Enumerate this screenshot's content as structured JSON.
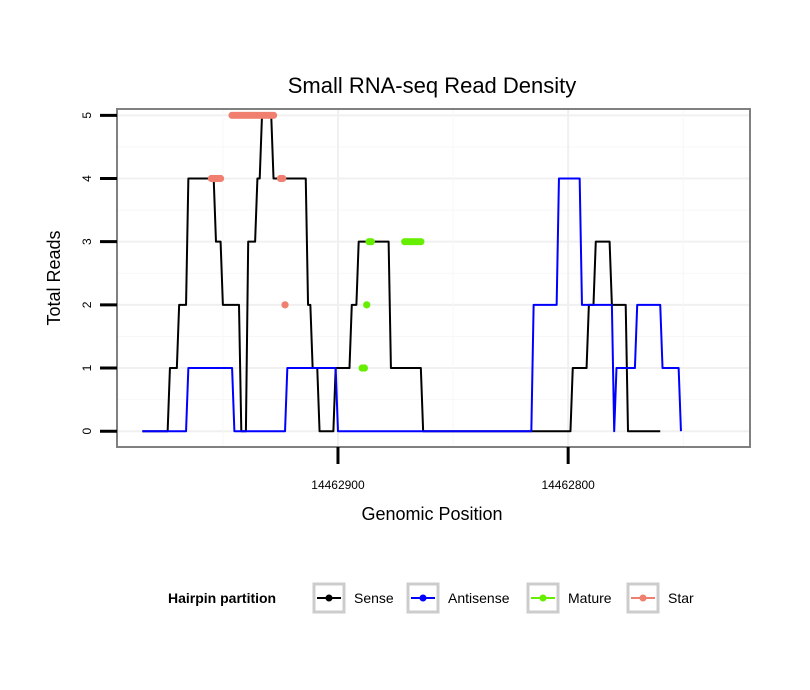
{
  "chart_data": {
    "type": "line",
    "title": "Small RNA-seq Read Density",
    "xlabel": "Genomic Position",
    "ylabel": "Total Reads",
    "xlim": [
      14462996,
      14462721
    ],
    "ylim": [
      -0.25,
      5.1
    ],
    "x_reversed": true,
    "x_ticks": [
      14462900,
      14462800
    ],
    "x_tick_labels": [
      "14462900",
      "14462800"
    ],
    "y_ticks": [
      0,
      1,
      2,
      3,
      4,
      5
    ],
    "y_tick_labels": [
      "0",
      "1",
      "2",
      "3",
      "4",
      "5"
    ],
    "grid": true,
    "legend": {
      "title": "Hairpin partition",
      "placement": "bottom",
      "entries": [
        {
          "name": "Sense",
          "color": "#000000"
        },
        {
          "name": "Antisense",
          "color": "#0000ff"
        },
        {
          "name": "Mature",
          "color": "#66ee00"
        },
        {
          "name": "Star",
          "color": "#f07f70"
        }
      ]
    },
    "series": [
      {
        "name": "Sense",
        "color": "#000000",
        "style": "line",
        "x": [
          14462985,
          14462974,
          14462973,
          14462970,
          14462969,
          14462966,
          14462965,
          14462954,
          14462953,
          14462951,
          14462950,
          14462943,
          14462942,
          14462940,
          14462939,
          14462936,
          14462935,
          14462934,
          14462933,
          14462929,
          14462928,
          14462914,
          14462913,
          14462912,
          14462911,
          14462909,
          14462908,
          14462902,
          14462901,
          14462895,
          14462894,
          14462892,
          14462891,
          14462878,
          14462877,
          14462871,
          14462870,
          14462864,
          14462863,
          14462799,
          14462798,
          14462795,
          14462794,
          14462792,
          14462791,
          14462789,
          14462788,
          14462782,
          14462781,
          14462775,
          14462774,
          14462767,
          14462766,
          14462760
        ],
        "y": [
          0,
          0,
          1,
          1,
          2,
          2,
          4,
          4,
          3,
          3,
          2,
          2,
          0,
          0,
          3,
          3,
          4,
          4,
          5,
          5,
          4,
          4,
          2,
          2,
          1,
          1,
          0,
          0,
          1,
          1,
          2,
          2,
          3,
          3,
          1,
          1,
          1,
          1,
          0,
          0,
          1,
          1,
          1,
          1,
          2,
          2,
          3,
          3,
          2,
          2,
          0,
          0,
          0,
          0
        ]
      },
      {
        "name": "Antisense",
        "color": "#0000ff",
        "style": "line",
        "x": [
          14462985,
          14462966,
          14462965,
          14462946,
          14462945,
          14462923,
          14462922,
          14462901,
          14462900,
          14462890,
          14462889,
          14462816,
          14462815,
          14462805,
          14462804,
          14462795,
          14462794,
          14462785,
          14462784,
          14462781,
          14462780,
          14462779,
          14462778,
          14462771,
          14462770,
          14462760,
          14462759,
          14462752,
          14462751
        ],
        "y": [
          0,
          0,
          1,
          1,
          0,
          0,
          1,
          1,
          0,
          0,
          0,
          0,
          2,
          2,
          4,
          4,
          2,
          2,
          2,
          2,
          0,
          1,
          1,
          1,
          2,
          2,
          1,
          1,
          0
        ]
      },
      {
        "name": "Mature",
        "color": "#66ee00",
        "style": "points",
        "x": [
          14462889.5,
          14462888.5,
          14462887.5,
          14462886.5,
          14462885.5,
          14462871,
          14462870,
          14462869,
          14462868,
          14462867,
          14462866,
          14462865,
          14462864
        ],
        "y": [
          1,
          1,
          2,
          3,
          3,
          3,
          3,
          3,
          3,
          3,
          3,
          3,
          3
        ]
      },
      {
        "name": "Star",
        "color": "#f07f70",
        "style": "points",
        "x": [
          14462955,
          14462954,
          14462953,
          14462952,
          14462951,
          14462946,
          14462945,
          14462944,
          14462943,
          14462942,
          14462941,
          14462940,
          14462939,
          14462938,
          14462937,
          14462936,
          14462935,
          14462934,
          14462933,
          14462932,
          14462931,
          14462930,
          14462929,
          14462928,
          14462925,
          14462924,
          14462923
        ],
        "y": [
          4,
          4,
          4,
          4,
          4,
          5,
          5,
          5,
          5,
          5,
          5,
          5,
          5,
          5,
          5,
          5,
          5,
          5,
          5,
          5,
          5,
          5,
          5,
          5,
          4,
          4,
          2
        ]
      }
    ]
  }
}
